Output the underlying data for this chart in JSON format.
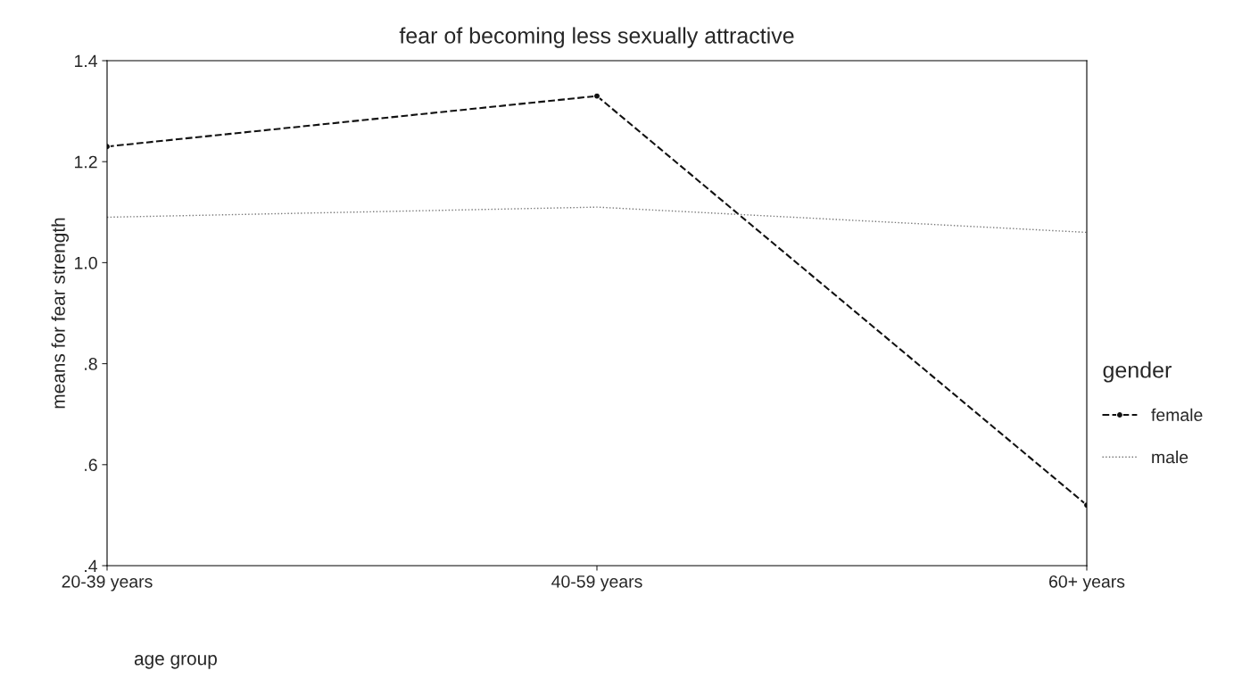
{
  "chart_data": {
    "type": "line",
    "title": "fear of becoming less sexually attractive",
    "xlabel": "age group",
    "ylabel": "means for fear strength",
    "categories": [
      "20-39 years",
      "40-59 years",
      "60+ years"
    ],
    "series": [
      {
        "name": "female",
        "color": "#111111",
        "values": [
          1.23,
          1.33,
          0.52
        ],
        "marker": "circle",
        "line_style": "dashed"
      },
      {
        "name": "male",
        "color": "#777777",
        "values": [
          1.09,
          1.11,
          1.06
        ],
        "marker": "none",
        "line_style": "dotted"
      }
    ],
    "ylim": [
      0.4,
      1.4
    ],
    "yticks": [
      {
        "value": 0.4,
        "label": ".4"
      },
      {
        "value": 0.6,
        "label": ".6"
      },
      {
        "value": 0.8,
        "label": ".8"
      },
      {
        "value": 1.0,
        "label": "1.0"
      },
      {
        "value": 1.2,
        "label": "1.2"
      },
      {
        "value": 1.4,
        "label": "1.4"
      }
    ],
    "legend_title": "gender",
    "legend": "right",
    "grid": false
  }
}
